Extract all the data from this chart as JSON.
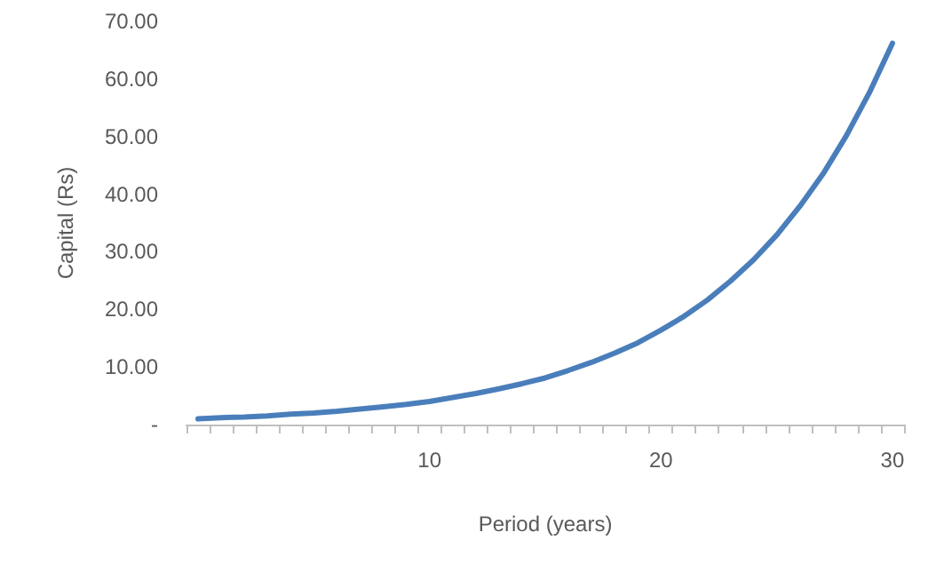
{
  "chart_data": {
    "type": "line",
    "xlabel": "Period (years)",
    "ylabel": "Capital (Rs)",
    "categories": [
      null,
      null,
      null,
      null,
      null,
      null,
      null,
      null,
      null,
      null,
      "10",
      null,
      null,
      null,
      null,
      null,
      null,
      null,
      null,
      null,
      "20",
      null,
      null,
      null,
      null,
      null,
      null,
      null,
      null,
      null,
      "30"
    ],
    "values": [
      1.0,
      1.2,
      1.3,
      1.5,
      1.8,
      2.0,
      2.3,
      2.7,
      3.1,
      3.5,
      4.0,
      4.7,
      5.4,
      6.2,
      7.1,
      8.1,
      9.4,
      10.8,
      12.4,
      14.2,
      16.4,
      18.8,
      21.6,
      24.9,
      28.6,
      32.9,
      37.9,
      43.5,
      50.1,
      57.6,
      66.2
    ],
    "color": "#4a7ebb",
    "ylim": [
      0,
      70
    ],
    "yticks": [
      {
        "value": 0,
        "label": "-"
      },
      {
        "value": 10,
        "label": "10.00"
      },
      {
        "value": 20,
        "label": "20.00"
      },
      {
        "value": 30,
        "label": "30.00"
      },
      {
        "value": 40,
        "label": "40.00"
      },
      {
        "value": 50,
        "label": "50.00"
      },
      {
        "value": 60,
        "label": "60.00"
      },
      {
        "value": 70,
        "label": "70.00"
      }
    ],
    "grid": false,
    "marker": "none",
    "line_style": "solid"
  }
}
